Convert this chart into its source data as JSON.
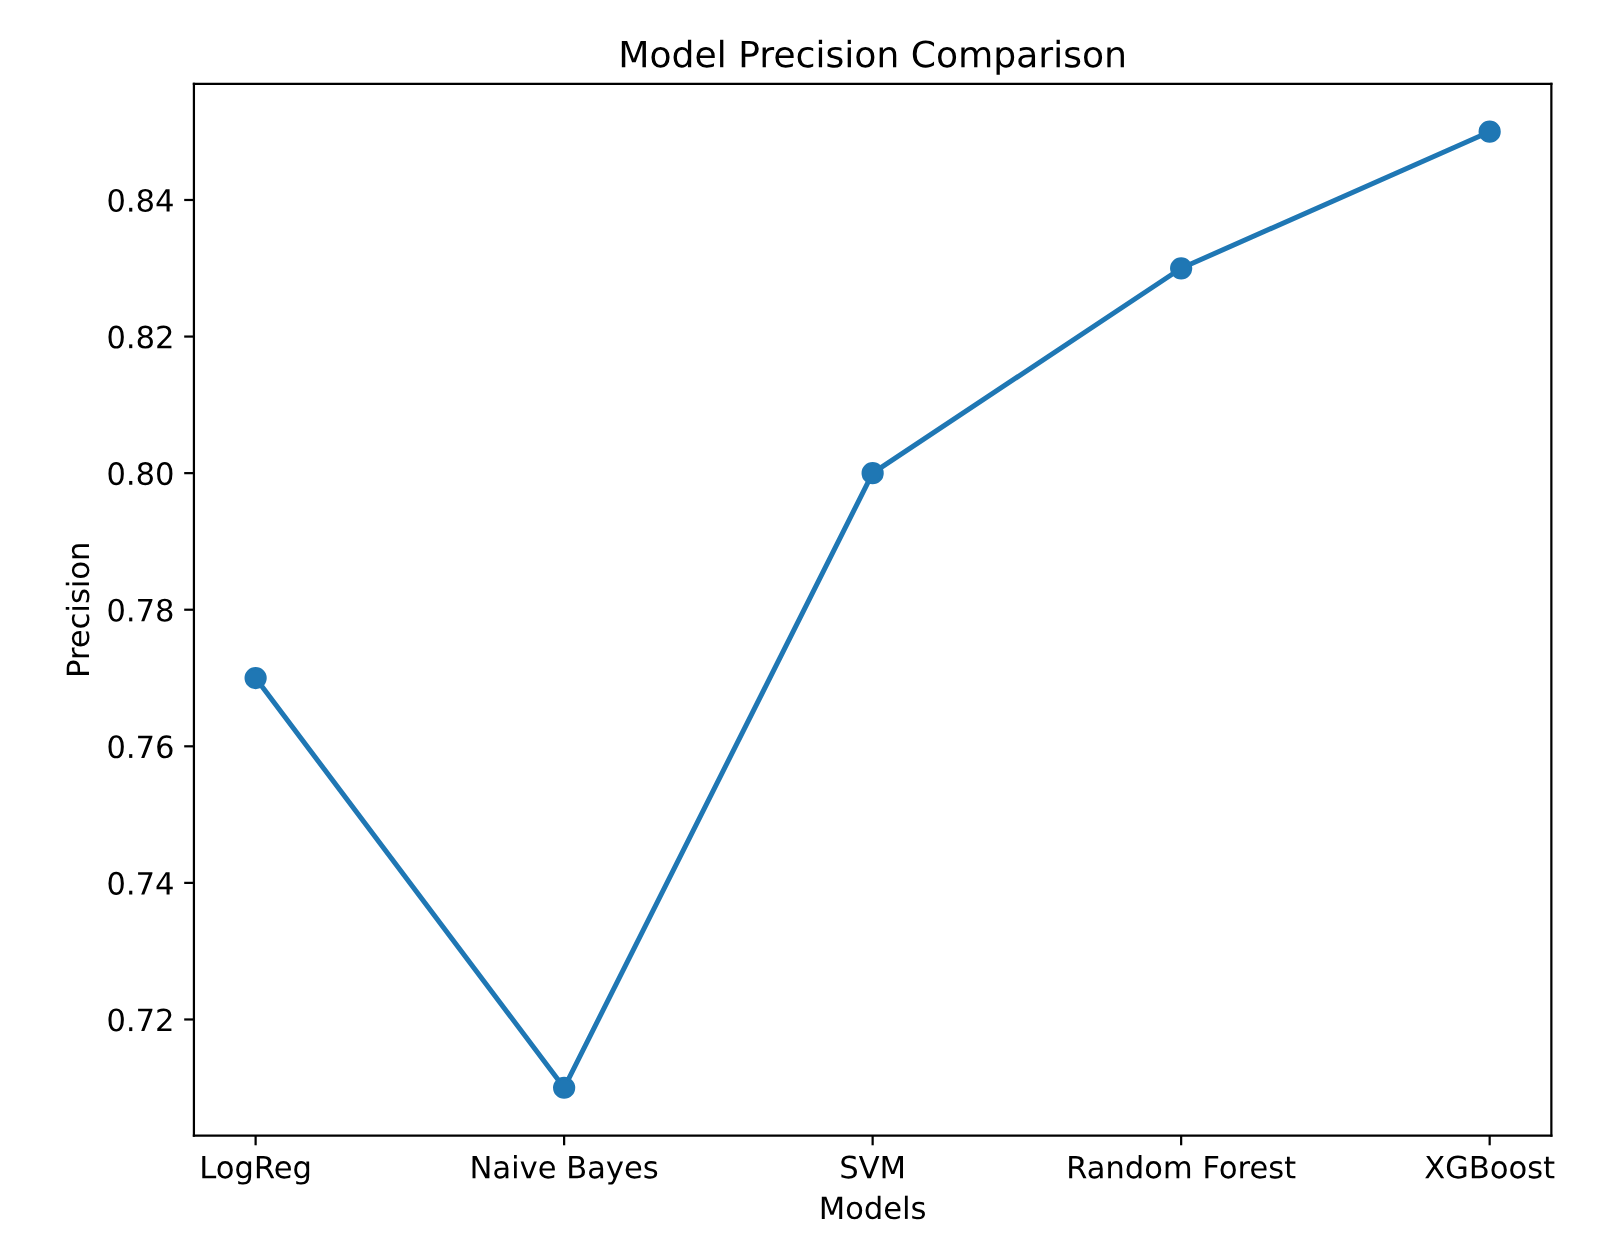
{
  "chart_data": {
    "type": "line",
    "title": "Model Precision Comparison",
    "xlabel": "Models",
    "ylabel": "Precision",
    "categories": [
      "LogReg",
      "Naive Bayes",
      "SVM",
      "Random Forest",
      "XGBoost"
    ],
    "series": [
      {
        "color": "#1f77b4",
        "values": [
          0.77,
          0.71,
          0.8,
          0.83,
          0.85
        ]
      }
    ],
    "ylim": [
      0.703,
      0.857
    ],
    "yticks": [
      {
        "value": 0.72,
        "label": "0.72"
      },
      {
        "value": 0.74,
        "label": "0.74"
      },
      {
        "value": 0.76,
        "label": "0.76"
      },
      {
        "value": 0.78,
        "label": "0.78"
      },
      {
        "value": 0.8,
        "label": "0.80"
      },
      {
        "value": 0.82,
        "label": "0.82"
      },
      {
        "value": 0.84,
        "label": "0.84"
      }
    ],
    "marker": "circle",
    "line_style": "solid",
    "grid": false,
    "legend": false
  }
}
